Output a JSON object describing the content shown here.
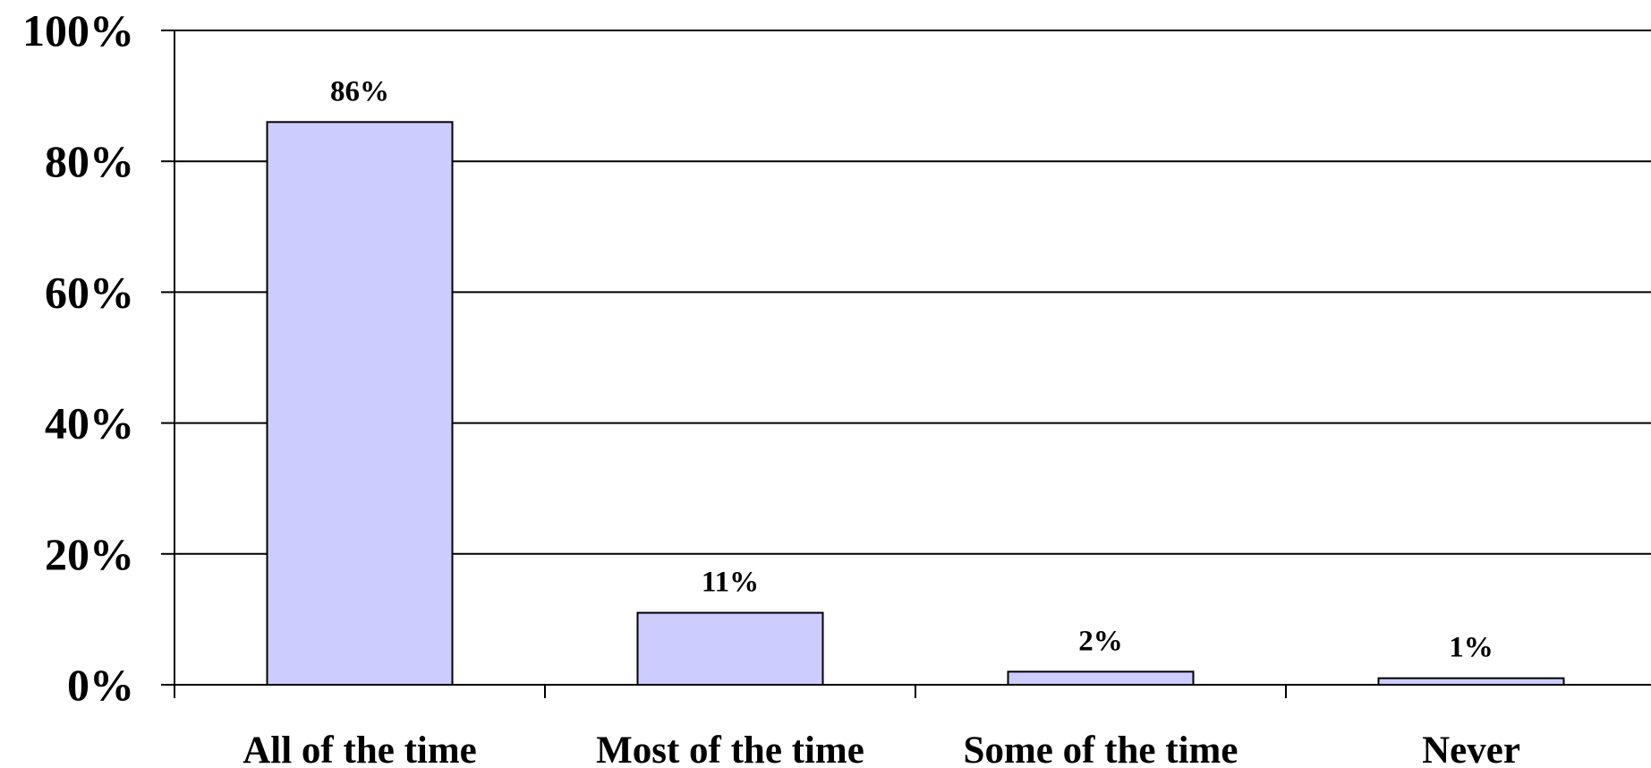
{
  "chart_data": {
    "type": "bar",
    "categories": [
      "All of the time",
      "Most of the time",
      "Some of the time",
      "Never"
    ],
    "values": [
      86,
      11,
      2,
      1
    ],
    "data_labels": [
      "86%",
      "11%",
      "2%",
      "1%"
    ],
    "y_ticks": [
      0,
      20,
      40,
      60,
      80,
      100
    ],
    "y_tick_labels": [
      "0%",
      "20%",
      "40%",
      "60%",
      "80%",
      "100%"
    ],
    "ylim": [
      0,
      100
    ],
    "grid": true,
    "legend": "none",
    "title": "",
    "xlabel": "",
    "ylabel": ""
  },
  "colors": {
    "bar_fill": "#ccccff",
    "bar_stroke": "#000000",
    "grid": "#000000",
    "axis": "#000000"
  }
}
